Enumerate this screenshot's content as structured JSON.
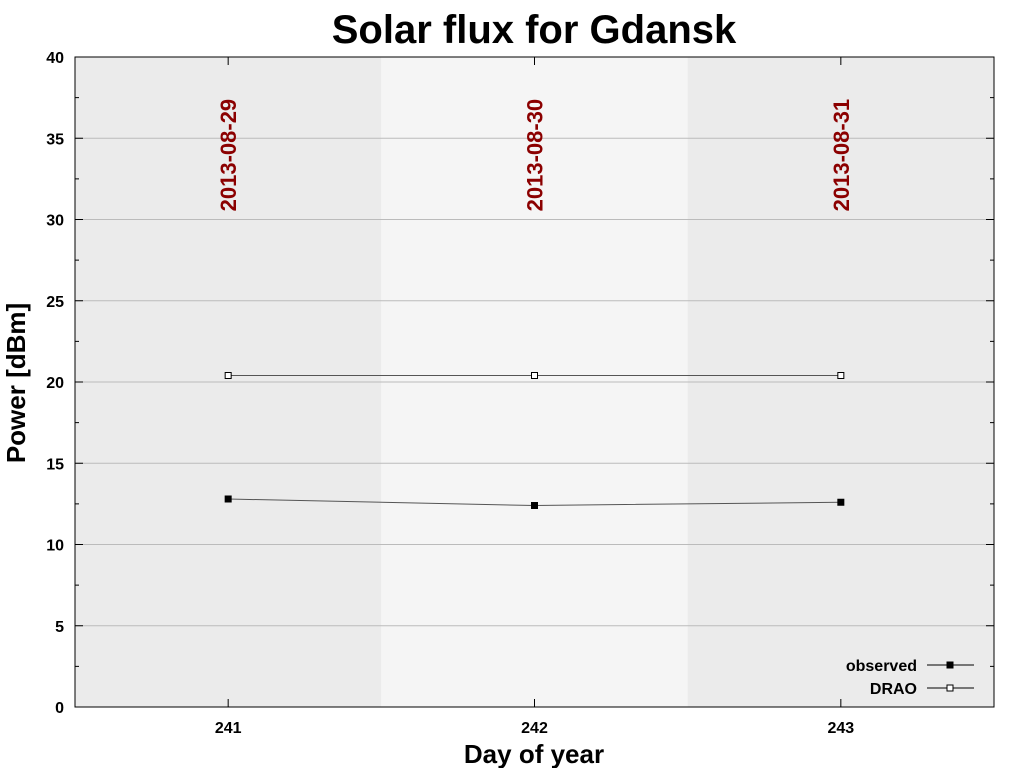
{
  "chart_data": {
    "type": "line",
    "title": "Solar flux for Gdansk",
    "xlabel": "Day of year",
    "ylabel": "Power [dBm]",
    "xlim": [
      240.5,
      243.5
    ],
    "ylim": [
      0,
      40
    ],
    "x": [
      241,
      242,
      243
    ],
    "x_ticks": [
      "241",
      "242",
      "243"
    ],
    "y_ticks": [
      "0",
      "5",
      "10",
      "15",
      "20",
      "25",
      "30",
      "35",
      "40"
    ],
    "y_tick_values": [
      0,
      5,
      10,
      15,
      20,
      25,
      30,
      35,
      40
    ],
    "grid": true,
    "legend_position": "bottom-right",
    "date_labels": [
      "2013-08-29",
      "2013-08-30",
      "2013-08-31"
    ],
    "series": [
      {
        "name": "observed",
        "values": [
          12.8,
          12.4,
          12.6
        ],
        "marker": "filled-square"
      },
      {
        "name": "DRAO",
        "values": [
          20.4,
          20.4,
          20.4
        ],
        "marker": "open-square"
      }
    ],
    "colors": {
      "line": "#555555",
      "date_label": "#8b0000",
      "band_dark": "#ebebeb",
      "band_light": "#f5f5f5",
      "grid": "#bbbbbb"
    }
  }
}
